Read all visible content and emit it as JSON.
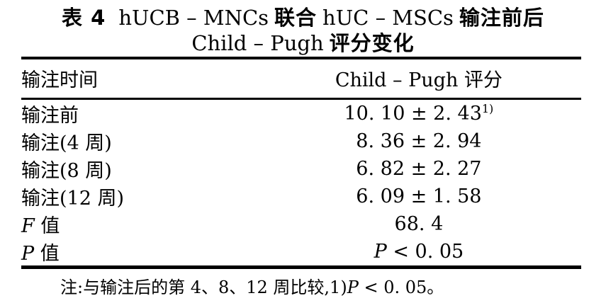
{
  "colors": {
    "background": "#ffffff",
    "text": "#000000"
  },
  "caption": {
    "line1_parts": [
      {
        "text": "表 4"
      },
      {
        "text": "hUCB – MNCs"
      },
      {
        "text": "联合"
      },
      {
        "text": "hUC – MSCs"
      },
      {
        "text": "输注前后"
      }
    ],
    "line2_parts": [
      {
        "text": "Child – Pugh"
      },
      {
        "text": "评分变化"
      }
    ]
  },
  "table": {
    "header": {
      "col1": "输注时间",
      "col2": "Child – Pugh 评分"
    },
    "rows": [
      {
        "label_italic": "",
        "label": "输注前",
        "value_italic": "",
        "value": "10. 10 ± 2. 43",
        "value_sup": "1)"
      },
      {
        "label_italic": "",
        "label": "输注(4 周)",
        "value_italic": "",
        "value": "8. 36 ± 2. 94",
        "value_sup": ""
      },
      {
        "label_italic": "",
        "label": "输注(8 周)",
        "value_italic": "",
        "value": "6. 82 ± 2. 27",
        "value_sup": ""
      },
      {
        "label_italic": "",
        "label": "输注(12 周)",
        "value_italic": "",
        "value": "6. 09 ± 1. 58",
        "value_sup": ""
      },
      {
        "label_italic": "F",
        "label": " 值",
        "value_italic": "",
        "value": "68. 4",
        "value_sup": ""
      },
      {
        "label_italic": "P",
        "label": " 值",
        "value_italic": "P",
        "value": " < 0. 05",
        "value_sup": ""
      }
    ]
  },
  "footnote": {
    "prefix": "注:与输注后的第 4、8、12 周比较,1)",
    "italic": "P",
    "suffix": " < 0. 05。"
  }
}
